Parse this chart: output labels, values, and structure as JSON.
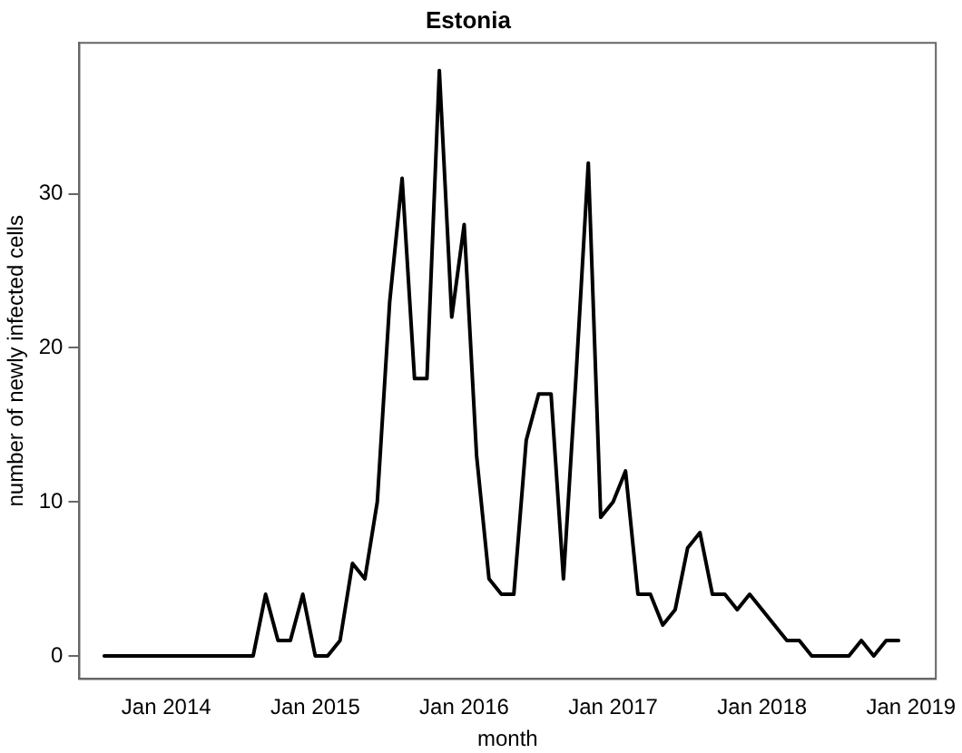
{
  "chart_data": {
    "type": "line",
    "title": "Estonia",
    "xlabel": "month",
    "ylabel": "number of newly infected cells",
    "x": [
      "2013-08",
      "2013-09",
      "2013-10",
      "2013-11",
      "2013-12",
      "2014-01",
      "2014-02",
      "2014-03",
      "2014-04",
      "2014-05",
      "2014-06",
      "2014-07",
      "2014-08",
      "2014-09",
      "2014-10",
      "2014-11",
      "2014-12",
      "2015-01",
      "2015-02",
      "2015-03",
      "2015-04",
      "2015-05",
      "2015-06",
      "2015-07",
      "2015-08",
      "2015-09",
      "2015-10",
      "2015-11",
      "2015-12",
      "2016-01",
      "2016-02",
      "2016-03",
      "2016-04",
      "2016-05",
      "2016-06",
      "2016-07",
      "2016-08",
      "2016-09",
      "2016-10",
      "2016-11",
      "2016-12",
      "2017-01",
      "2017-02",
      "2017-03",
      "2017-04",
      "2017-05",
      "2017-06",
      "2017-07",
      "2017-08",
      "2017-09",
      "2017-10",
      "2017-11",
      "2017-12",
      "2018-01",
      "2018-02",
      "2018-03",
      "2018-04",
      "2018-05",
      "2018-06",
      "2018-07",
      "2018-08",
      "2018-09",
      "2018-10",
      "2018-11",
      "2018-12"
    ],
    "series": [
      {
        "color": "#000000",
        "values": [
          0,
          0,
          0,
          0,
          0,
          0,
          0,
          0,
          0,
          0,
          0,
          0,
          0,
          4,
          1,
          1,
          4,
          0,
          0,
          1,
          6,
          5,
          10,
          23,
          31,
          18,
          18,
          38,
          22,
          28,
          13,
          5,
          4,
          4,
          14,
          17,
          17,
          5,
          18,
          32,
          9,
          10,
          12,
          4,
          4,
          2,
          3,
          7,
          8,
          4,
          4,
          3,
          4,
          3,
          2,
          1,
          1,
          0,
          0,
          0,
          0,
          1,
          0,
          1,
          1
        ]
      }
    ],
    "xlim": [
      "2013-06",
      "2019-03"
    ],
    "xticks": [
      {
        "value": "2014-01",
        "label": "Jan 2014"
      },
      {
        "value": "2015-01",
        "label": "Jan 2015"
      },
      {
        "value": "2016-01",
        "label": "Jan 2016"
      },
      {
        "value": "2017-01",
        "label": "Jan 2017"
      },
      {
        "value": "2018-01",
        "label": "Jan 2018"
      },
      {
        "value": "2019-01",
        "label": "Jan 2019"
      }
    ],
    "ylim": [
      -1.5,
      39.8
    ],
    "yticks": [
      0,
      10,
      20,
      30
    ],
    "grid": false,
    "legend": false,
    "marker": "none",
    "line_style": "solid"
  }
}
